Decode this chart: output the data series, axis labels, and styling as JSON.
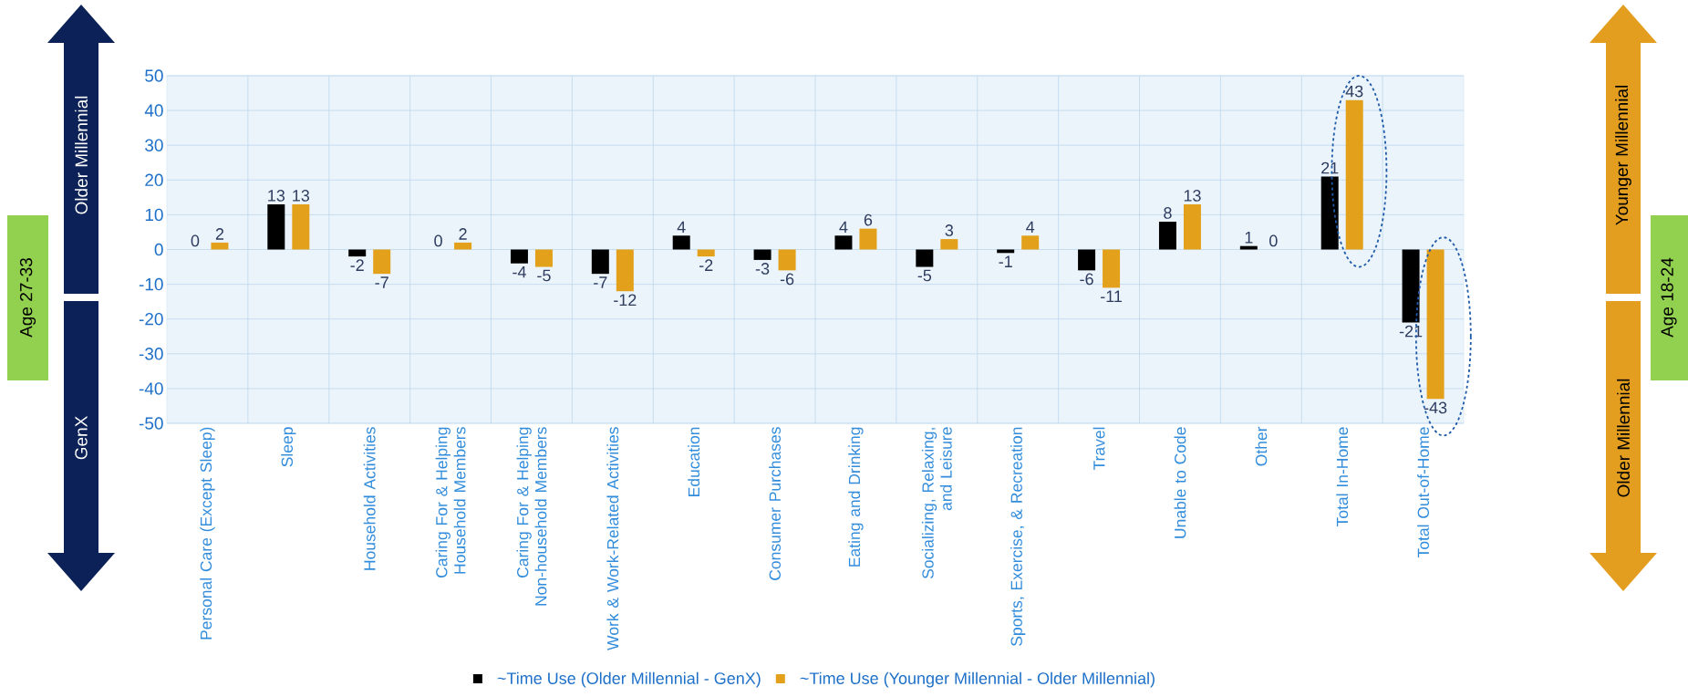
{
  "chart_data": {
    "type": "bar",
    "categories": [
      "Personal Care (Except Sleep)",
      "Sleep",
      "Household Activities",
      "Caring For & Helping Household Members",
      "Caring For & Helping Non-household Members",
      "Work & Work-Related Activities",
      "Education",
      "Consumer Purchases",
      "Eating and Drinking",
      "Socializing, Relaxing, and Leisure",
      "Sports, Exercise, & Recreation",
      "Travel",
      "Unable to Code",
      "Other",
      "Total In-Home",
      "Total Out-of-Home"
    ],
    "series": [
      {
        "name": "~Time Use (Older Millennial - GenX)",
        "color": "#000000",
        "values": [
          0,
          13,
          -2,
          0,
          -4,
          -7,
          4,
          -3,
          4,
          -5,
          -1,
          -6,
          8,
          1,
          21,
          -21
        ]
      },
      {
        "name": "~Time Use (Younger Millennial - Older Millennial)",
        "color": "#E3A01B",
        "values": [
          2,
          13,
          -7,
          2,
          -5,
          -12,
          -2,
          -6,
          6,
          3,
          4,
          -11,
          13,
          0,
          43,
          -43
        ]
      }
    ],
    "ylim": [
      -50,
      50
    ],
    "yticks": [
      -50,
      -40,
      -30,
      -20,
      -10,
      0,
      10,
      20,
      30,
      40,
      50
    ],
    "grid": true,
    "legend": "bottom",
    "data_labels": true,
    "annotations": [
      "Older Millennial",
      "GenX",
      "Age 27-33",
      "Younger Millennial",
      "Older Millennial",
      "Age 18-24"
    ]
  }
}
